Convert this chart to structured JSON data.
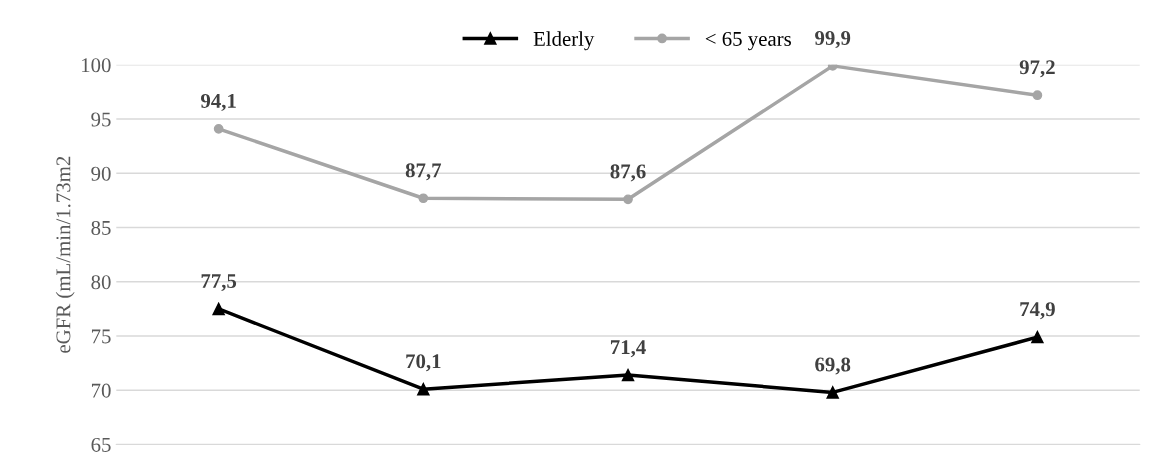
{
  "chart_data": {
    "type": "line",
    "ylabel": "eGFR (mL/min/1.73m2",
    "categories": [
      null,
      null,
      null,
      null,
      null
    ],
    "series": [
      {
        "name": "Elderly",
        "color": "#000000",
        "marker": "triangle",
        "values": [
          77.5,
          70.1,
          71.4,
          69.8,
          74.9
        ],
        "value_labels": [
          "77,5",
          "70,1",
          "71,4",
          "69,8",
          "74,9"
        ]
      },
      {
        "name": "< 65 years",
        "color": "#a5a5a5",
        "marker": "circle",
        "values": [
          94.1,
          87.7,
          87.6,
          99.9,
          97.2
        ],
        "value_labels": [
          "94,1",
          "87,7",
          "87,6",
          "99,9",
          "97,2"
        ]
      }
    ],
    "ylim": [
      65,
      100
    ],
    "yticks": [
      65,
      70,
      75,
      80,
      85,
      90,
      95,
      100
    ],
    "grid": "y",
    "legend": "top"
  }
}
